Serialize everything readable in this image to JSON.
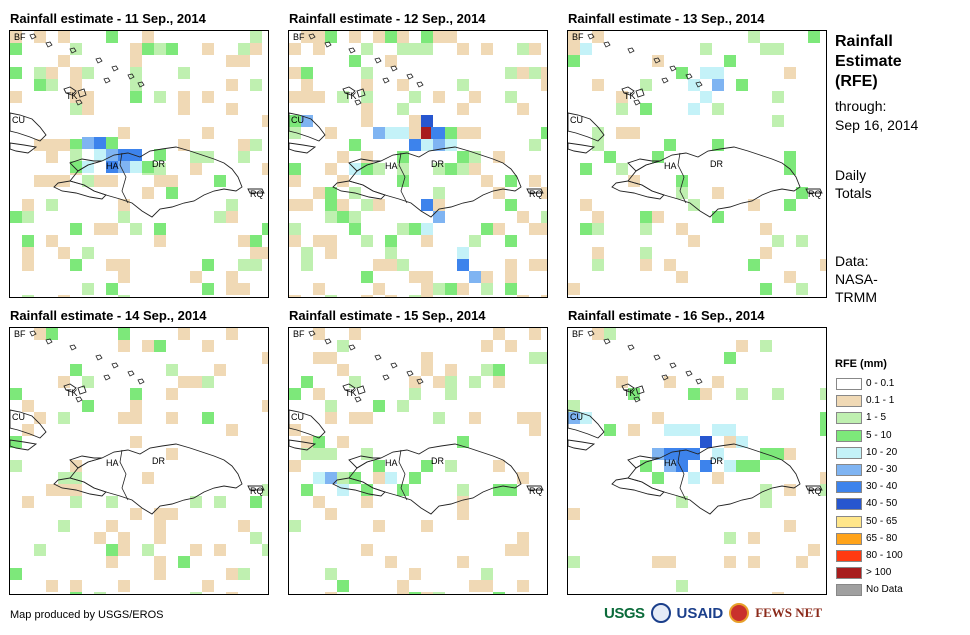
{
  "panels": [
    {
      "title": "Rainfall estimate - 11 Sep., 2014"
    },
    {
      "title": "Rainfall estimate - 12 Sep., 2014"
    },
    {
      "title": "Rainfall estimate - 13 Sep., 2014"
    },
    {
      "title": "Rainfall estimate - 14 Sep., 2014"
    },
    {
      "title": "Rainfall estimate - 15 Sep., 2014"
    },
    {
      "title": "Rainfall estimate - 16 Sep., 2014"
    }
  ],
  "place_labels": {
    "bf": "BF",
    "cu": "CU",
    "tk": "TK",
    "ha": "HA",
    "dr": "DR",
    "rq": "RQ"
  },
  "side": {
    "title_line1": "Rainfall",
    "title_line2": "Estimate",
    "title_line3": "(RFE)",
    "through": "through:",
    "date": "Sep 16, 2014",
    "daily": "Daily",
    "totals": "Totals",
    "data_label": "Data:",
    "source1": "NASA-",
    "source2": "TRMM"
  },
  "legend": {
    "title": "RFE (mm)",
    "items": [
      {
        "label": "0 - 0.1",
        "color": "#ffffff"
      },
      {
        "label": "0.1 - 1",
        "color": "#f0d9b5"
      },
      {
        "label": "1 - 5",
        "color": "#bff0b0"
      },
      {
        "label": "5 - 10",
        "color": "#7de87a"
      },
      {
        "label": "10 - 20",
        "color": "#c4f2f8"
      },
      {
        "label": "20 - 30",
        "color": "#7fb4f2"
      },
      {
        "label": "30 - 40",
        "color": "#3d83ec"
      },
      {
        "label": "40 - 50",
        "color": "#2756cf"
      },
      {
        "label": "50 - 65",
        "color": "#ffe68a"
      },
      {
        "label": "65 - 80",
        "color": "#ffa31a"
      },
      {
        "label": "80 - 100",
        "color": "#ff3a10"
      },
      {
        "label": "> 100",
        "color": "#a81c1c"
      },
      {
        "label": "No Data",
        "color": "#a0a0a0"
      }
    ]
  },
  "credit": "Map produced by USGS/EROS",
  "logos": {
    "usgs": "USGS",
    "usaid": "USAID",
    "fews": "FEWS NET"
  }
}
